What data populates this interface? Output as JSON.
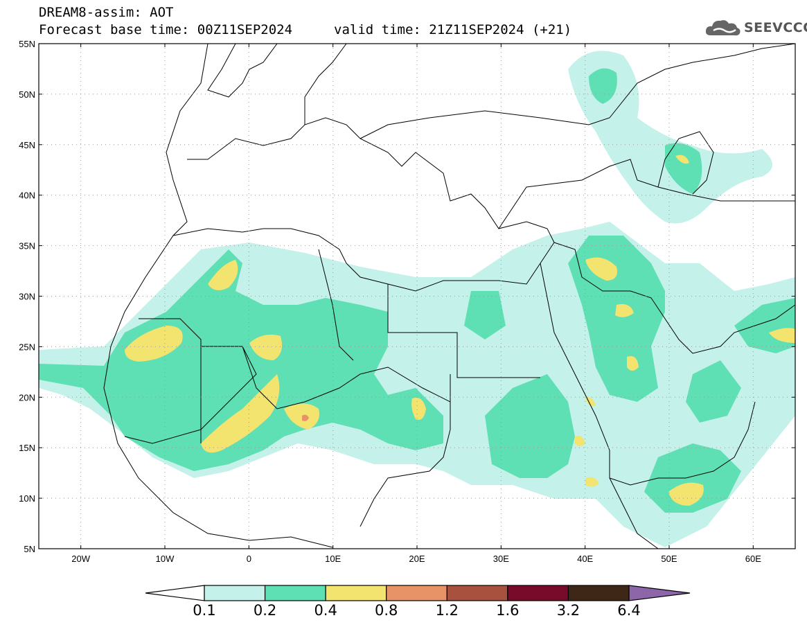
{
  "header": {
    "line1": "DREAM8-assim: AOT",
    "line2": "Forecast base time: 00Z11SEP2024",
    "valid": "valid time: 21Z11SEP2024 (+21)",
    "logo_text": "SEEVCCC",
    "logo_icon": "cloud-logo-icon"
  },
  "map": {
    "lon_range": [
      -25,
      65
    ],
    "lat_range": [
      5,
      55
    ],
    "lat_labels": [
      "55N",
      "50N",
      "45N",
      "40N",
      "35N",
      "30N",
      "25N",
      "20N",
      "15N",
      "10N",
      "5N"
    ],
    "lat_values": [
      55,
      50,
      45,
      40,
      35,
      30,
      25,
      20,
      15,
      10,
      5
    ],
    "lon_labels": [
      "20W",
      "10W",
      "0",
      "10E",
      "20E",
      "30E",
      "40E",
      "50E",
      "60E"
    ],
    "lon_values": [
      -20,
      -10,
      0,
      10,
      20,
      30,
      40,
      50,
      60
    ],
    "gridlines": "dotted"
  },
  "colorbar": {
    "levels": [
      "0.1",
      "0.2",
      "0.4",
      "0.8",
      "1.2",
      "1.6",
      "3.2",
      "6.4"
    ],
    "colors": [
      "#ffffff",
      "#c4f1ea",
      "#5fdfb4",
      "#f3e36f",
      "#e89268",
      "#a9513f",
      "#780b29",
      "#3e2716",
      "#8c66a8"
    ]
  }
}
